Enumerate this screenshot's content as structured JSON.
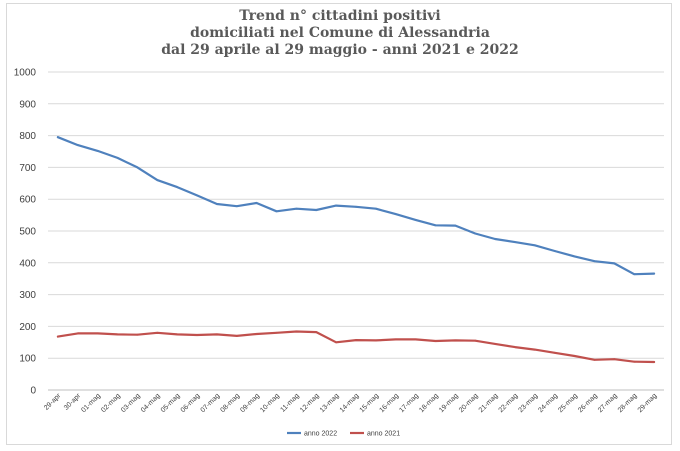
{
  "chart_data": {
    "type": "line",
    "title": [
      "Trend n° cittadini positivi",
      "domiciliati nel Comune di Alessandria",
      "dal 29 aprile al 29 maggio - anni 2021 e 2022"
    ],
    "xlabel": "",
    "ylabel": "",
    "ylim": [
      0,
      1000
    ],
    "yticks": [
      0,
      100,
      200,
      300,
      400,
      500,
      600,
      700,
      800,
      900,
      1000
    ],
    "grid": true,
    "legend_position": "bottom",
    "categories": [
      "29-apr",
      "30-apr",
      "01-mag",
      "02-mag",
      "03-mag",
      "04-mag",
      "05-mag",
      "06-mag",
      "07-mag",
      "08-mag",
      "09-mag",
      "10-mag",
      "11-mag",
      "12-mag",
      "13-mag",
      "14-mag",
      "15-mag",
      "16-mag",
      "17-mag",
      "18-mag",
      "19-mag",
      "20-mag",
      "21-mag",
      "22-mag",
      "23-mag",
      "24-mag",
      "25-mag",
      "26-mag",
      "27-mag",
      "28-mag",
      "29-mag"
    ],
    "series": [
      {
        "name": "anno 2022",
        "color": "#4f81bd",
        "values": [
          795,
          770,
          752,
          730,
          700,
          660,
          638,
          612,
          585,
          578,
          588,
          562,
          570,
          566,
          580,
          576,
          570,
          553,
          535,
          518,
          517,
          492,
          475,
          465,
          455,
          437,
          420,
          405,
          398,
          364,
          366
        ]
      },
      {
        "name": "anno 2021",
        "color": "#c0504d",
        "values": [
          168,
          178,
          178,
          175,
          174,
          180,
          175,
          173,
          175,
          170,
          176,
          180,
          184,
          182,
          150,
          157,
          156,
          159,
          159,
          154,
          156,
          155,
          145,
          135,
          127,
          117,
          107,
          95,
          97,
          89,
          88
        ]
      }
    ]
  }
}
